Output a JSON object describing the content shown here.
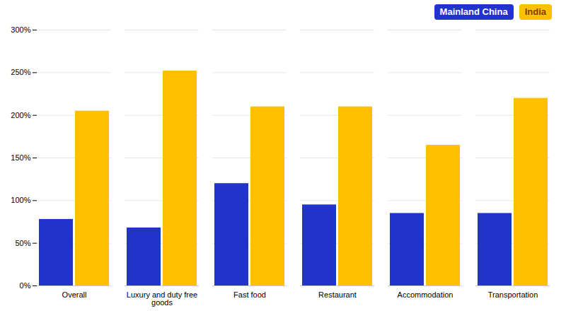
{
  "chart_data": {
    "type": "bar",
    "categories": [
      "Overall",
      "Luxury and duty free\ngoods",
      "Fast food",
      "Restaurant",
      "Accommodation",
      "Transportation"
    ],
    "series": [
      {
        "name": "Mainland China",
        "color": "#2233CC",
        "values": [
          78,
          68,
          120,
          95,
          85,
          85
        ]
      },
      {
        "name": "India",
        "color": "#FFC000",
        "values": [
          205,
          252,
          210,
          210,
          165,
          220
        ]
      }
    ],
    "ylim": [
      0,
      300
    ],
    "yticks": [
      {
        "value": 0,
        "label": "0%"
      },
      {
        "value": 50,
        "label": "50%"
      },
      {
        "value": 100,
        "label": "100%"
      },
      {
        "value": 150,
        "label": "150%"
      },
      {
        "value": 200,
        "label": "200%"
      },
      {
        "value": 250,
        "label": "250%"
      },
      {
        "value": 300,
        "label": "300%"
      }
    ],
    "grid": true,
    "legend": "upper right"
  }
}
